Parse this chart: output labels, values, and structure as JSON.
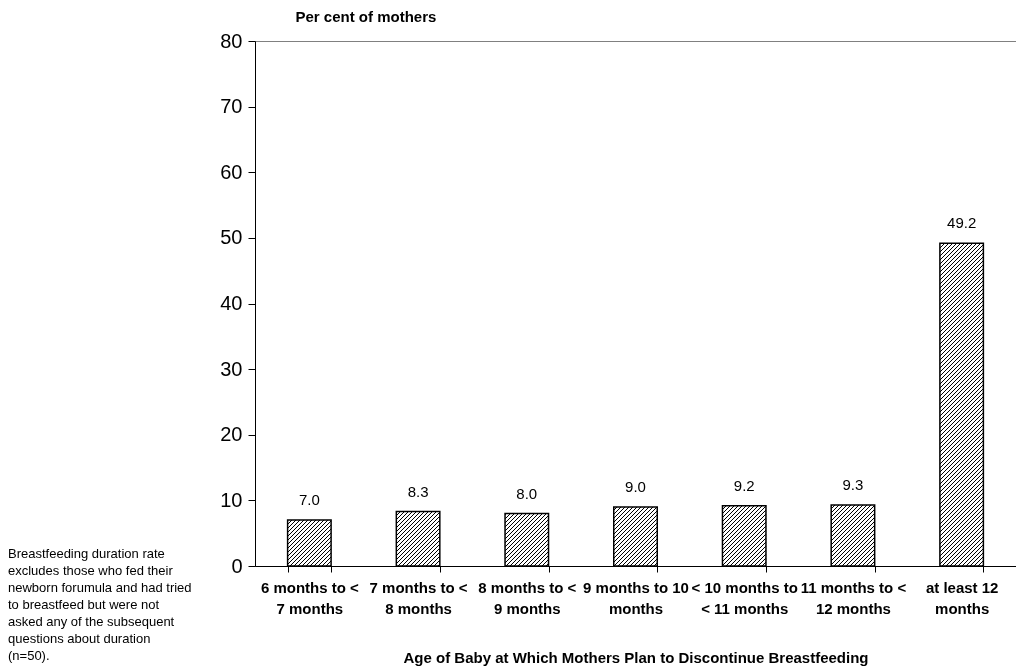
{
  "chart_data": {
    "type": "bar",
    "xlabel": "Age of Baby at Which Mothers Plan to Discontinue Breastfeeding",
    "ylabel": "Per cent of mothers",
    "categories": [
      "6 months to < 7 months",
      "7 months to < 8 months",
      "8 months to < 9 months",
      "9 months to 10 months",
      "< 10 months to < 11 months",
      "11 months to < 12 months",
      "at least 12 months"
    ],
    "values": [
      7.0,
      8.3,
      8.0,
      9.0,
      9.2,
      9.3,
      49.2
    ],
    "value_labels": [
      "7.0",
      "8.3",
      "8.0",
      "9.0",
      "9.2",
      "9.3",
      "49.2"
    ],
    "color": "#000000",
    "ylim": [
      0,
      80
    ],
    "yticks": [
      0,
      10,
      20,
      30,
      40,
      50,
      60,
      70,
      80
    ],
    "annotations": [
      "Breastfeeding duration rate excludes those who fed their newborn forumula and had tried to breastfeed but were not asked any of the subsequent questions about duration (n=50)."
    ]
  }
}
